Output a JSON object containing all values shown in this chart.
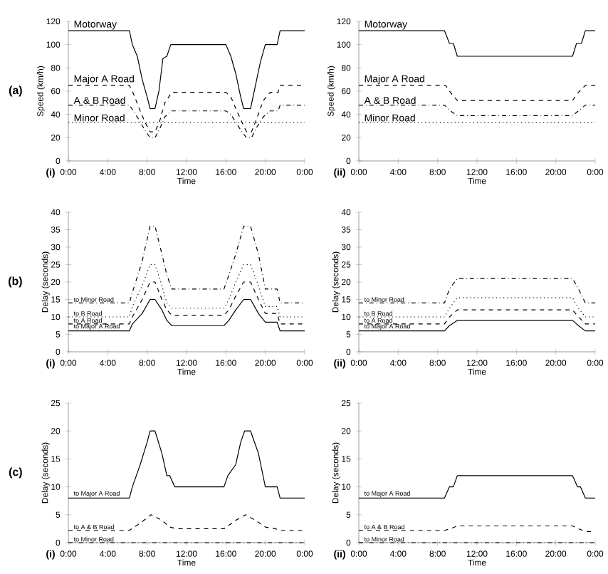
{
  "chart_data": [
    {
      "type": "line",
      "xlabel": "Time",
      "ylabel": "Speed (km/h)",
      "xlim": [
        0,
        24
      ],
      "ylim": [
        0,
        120
      ],
      "xticks": [
        {
          "value": 0,
          "label": "0:00"
        },
        {
          "value": 4,
          "label": "4:00"
        },
        {
          "value": 8,
          "label": "8:00"
        },
        {
          "value": 12,
          "label": "12:00"
        },
        {
          "value": 16,
          "label": "16:00"
        },
        {
          "value": 20,
          "label": "20:00"
        },
        {
          "value": 24,
          "label": "0:00"
        }
      ],
      "yticks": [
        0,
        20,
        40,
        60,
        80,
        100,
        120
      ],
      "annotations": [
        "(a)",
        "(i)"
      ],
      "series": [
        {
          "name": "Motorway",
          "color": "#000000",
          "line_style": "solid",
          "x": [
            0,
            6.2,
            6.5,
            7,
            7.5,
            8,
            8.3,
            8.8,
            9.2,
            9.6,
            10,
            10.4,
            16,
            16.5,
            17,
            17.5,
            17.8,
            18.5,
            19,
            19.5,
            20,
            21.2,
            21.5,
            24
          ],
          "values": [
            112,
            112,
            100,
            90,
            70,
            55,
            45,
            45,
            60,
            88,
            90,
            100,
            100,
            90,
            75,
            55,
            45,
            45,
            65,
            85,
            100,
            100,
            112,
            112
          ]
        },
        {
          "name": "Major A Road",
          "color": "#000000",
          "line_style": "dashed",
          "x": [
            0,
            6.2,
            6.6,
            7.2,
            7.8,
            8.3,
            8.8,
            9.3,
            9.8,
            10.5,
            16,
            16.5,
            17.1,
            17.7,
            18.1,
            18.6,
            19.2,
            19.8,
            20.5,
            21.3,
            21.5,
            24
          ],
          "values": [
            65,
            65,
            58,
            45,
            33,
            25,
            25,
            35,
            50,
            59,
            59,
            55,
            43,
            32,
            25,
            25,
            38,
            52,
            59,
            59,
            65,
            65
          ]
        },
        {
          "name": "A & B Road",
          "color": "#000000",
          "line_style": "dashdot",
          "x": [
            0,
            6.2,
            6.6,
            7.2,
            7.8,
            8.3,
            8.8,
            9.3,
            9.8,
            10.5,
            16,
            16.5,
            17.1,
            17.7,
            18.1,
            18.6,
            19.2,
            19.8,
            20.5,
            21.3,
            21.5,
            24
          ],
          "values": [
            48,
            48,
            43,
            35,
            26,
            20,
            20,
            28,
            38,
            43,
            43,
            40,
            32,
            24,
            20,
            20,
            30,
            38,
            43,
            43,
            48,
            48
          ]
        },
        {
          "name": "Minor Road",
          "color": "#000000",
          "line_style": "dotted",
          "x": [
            0,
            24
          ],
          "values": [
            33,
            33
          ]
        }
      ]
    },
    {
      "type": "line",
      "xlabel": "Time",
      "ylabel": "Speed (km/h)",
      "xlim": [
        0,
        24
      ],
      "ylim": [
        0,
        120
      ],
      "xticks": [
        {
          "value": 0,
          "label": "0:00"
        },
        {
          "value": 4,
          "label": "4:00"
        },
        {
          "value": 8,
          "label": "8:00"
        },
        {
          "value": 12,
          "label": "12:00"
        },
        {
          "value": 16,
          "label": "16:00"
        },
        {
          "value": 20,
          "label": "20:00"
        },
        {
          "value": 24,
          "label": "0:00"
        }
      ],
      "yticks": [
        0,
        20,
        40,
        60,
        80,
        100,
        120
      ],
      "annotations": [
        "(ii)"
      ],
      "series": [
        {
          "name": "Motorway",
          "color": "#000000",
          "line_style": "solid",
          "x": [
            0,
            8.7,
            9.2,
            9.6,
            10,
            21.7,
            22.1,
            22.6,
            23,
            24
          ],
          "values": [
            112,
            112,
            101,
            101,
            90,
            90,
            101,
            101,
            112,
            112
          ]
        },
        {
          "name": "Major A Road",
          "color": "#000000",
          "line_style": "dashed",
          "x": [
            0,
            8.8,
            9.3,
            10,
            21.7,
            22.3,
            23,
            24
          ],
          "values": [
            65,
            65,
            59,
            52,
            52,
            59,
            65,
            65
          ]
        },
        {
          "name": "A & B Road",
          "color": "#000000",
          "line_style": "dashdot",
          "x": [
            0,
            8.7,
            9.3,
            10,
            21.7,
            22.3,
            23,
            24
          ],
          "values": [
            48,
            48,
            43,
            39,
            39,
            43,
            48,
            48
          ]
        },
        {
          "name": "Minor Road",
          "color": "#000000",
          "line_style": "dotted",
          "x": [
            0,
            24
          ],
          "values": [
            33,
            33
          ]
        }
      ]
    },
    {
      "type": "line",
      "xlabel": "Time",
      "ylabel": "Delay (seconds)",
      "xlim": [
        0,
        24
      ],
      "ylim": [
        0,
        40
      ],
      "xticks": [
        {
          "value": 0,
          "label": "0:00"
        },
        {
          "value": 4,
          "label": "4:00"
        },
        {
          "value": 8,
          "label": "8:00"
        },
        {
          "value": 12,
          "label": "12:00"
        },
        {
          "value": 16,
          "label": "16:00"
        },
        {
          "value": 20,
          "label": "20:00"
        },
        {
          "value": 24,
          "label": "0:00"
        }
      ],
      "yticks": [
        0,
        5,
        10,
        15,
        20,
        25,
        30,
        35,
        40
      ],
      "annotations": [
        "(b)",
        "(i)"
      ],
      "series": [
        {
          "name": "to Minor Road",
          "color": "#000000",
          "line_style": "dashdot",
          "x": [
            0,
            6.2,
            6.5,
            7.5,
            8.3,
            8.8,
            9.5,
            10,
            10.5,
            15.8,
            16.3,
            17,
            17.8,
            18.5,
            19.3,
            20,
            21.2,
            21.5,
            24
          ],
          "values": [
            14,
            14,
            17,
            26,
            36,
            36,
            28,
            22,
            18,
            18,
            22,
            28,
            36,
            36,
            28,
            18,
            18,
            14,
            14
          ]
        },
        {
          "name": "to B Road",
          "color": "#000000",
          "line_style": "dotted",
          "x": [
            0,
            6.2,
            6.5,
            7.5,
            8.3,
            8.8,
            9.5,
            10,
            10.5,
            15.8,
            16.3,
            17,
            17.8,
            18.5,
            19.3,
            20,
            21.2,
            21.5,
            24
          ],
          "values": [
            10,
            10,
            13,
            19,
            25,
            25,
            19,
            14,
            12.5,
            12.5,
            15,
            20,
            25,
            25,
            19,
            13,
            13,
            10,
            10
          ]
        },
        {
          "name": "to A Road",
          "color": "#000000",
          "line_style": "dashed",
          "x": [
            0,
            6.2,
            6.5,
            7.5,
            8.3,
            8.8,
            9.5,
            10,
            10.5,
            15.8,
            16.3,
            17,
            17.8,
            18.5,
            19.3,
            20,
            21.2,
            21.5,
            24
          ],
          "values": [
            8,
            8,
            10,
            15,
            20,
            20,
            15,
            12,
            10.5,
            10.5,
            12,
            16,
            20,
            20,
            15,
            11,
            11,
            8,
            8
          ]
        },
        {
          "name": "to Major A Road",
          "color": "#000000",
          "line_style": "solid",
          "x": [
            0,
            6.2,
            6.5,
            7.5,
            8.3,
            8.8,
            9.5,
            10,
            10.5,
            15.8,
            16.3,
            17,
            17.8,
            18.5,
            19.3,
            20,
            21.2,
            21.5,
            24
          ],
          "values": [
            6,
            6,
            8,
            11,
            15,
            15,
            12,
            9,
            7.5,
            7.5,
            9,
            12,
            15,
            15,
            11,
            8.5,
            8.5,
            6,
            6
          ]
        }
      ]
    },
    {
      "type": "line",
      "xlabel": "Time",
      "ylabel": "Delay (seconds)",
      "xlim": [
        0,
        24
      ],
      "ylim": [
        0,
        40
      ],
      "xticks": [
        {
          "value": 0,
          "label": "0:00"
        },
        {
          "value": 4,
          "label": "4:00"
        },
        {
          "value": 8,
          "label": "8:00"
        },
        {
          "value": 12,
          "label": "12:00"
        },
        {
          "value": 16,
          "label": "16:00"
        },
        {
          "value": 20,
          "label": "20:00"
        },
        {
          "value": 24,
          "label": "0:00"
        }
      ],
      "yticks": [
        0,
        5,
        10,
        15,
        20,
        25,
        30,
        35,
        40
      ],
      "annotations": [
        "(ii)"
      ],
      "series": [
        {
          "name": "to Minor Road",
          "color": "#000000",
          "line_style": "dashdot",
          "x": [
            0,
            8.7,
            9.2,
            10,
            21.7,
            22.3,
            23,
            24
          ],
          "values": [
            14,
            14,
            18,
            21,
            21,
            18,
            14,
            14
          ]
        },
        {
          "name": "to B Road",
          "color": "#000000",
          "line_style": "dotted",
          "x": [
            0,
            8.7,
            9.2,
            10,
            21.7,
            22.3,
            23,
            24
          ],
          "values": [
            10,
            10,
            12.5,
            15.5,
            15.5,
            12.5,
            10,
            10
          ]
        },
        {
          "name": "to A Road",
          "color": "#000000",
          "line_style": "dashed",
          "x": [
            0,
            8.7,
            9.2,
            10,
            21.7,
            22.3,
            23,
            24
          ],
          "values": [
            8,
            8,
            10,
            12,
            12,
            10,
            8,
            8
          ]
        },
        {
          "name": "to Major A Road",
          "color": "#000000",
          "line_style": "solid",
          "x": [
            0,
            8.7,
            9.2,
            10,
            21.7,
            22.3,
            23,
            24
          ],
          "values": [
            6,
            6,
            7.5,
            9,
            9,
            7.5,
            6,
            6
          ]
        }
      ]
    },
    {
      "type": "line",
      "xlabel": "Time",
      "ylabel": "Delay (seconds)",
      "xlim": [
        0,
        24
      ],
      "ylim": [
        0,
        25
      ],
      "xticks": [
        {
          "value": 0,
          "label": "0:00"
        },
        {
          "value": 4,
          "label": "4:00"
        },
        {
          "value": 8,
          "label": "8:00"
        },
        {
          "value": 12,
          "label": "12:00"
        },
        {
          "value": 16,
          "label": "16:00"
        },
        {
          "value": 20,
          "label": "20:00"
        },
        {
          "value": 24,
          "label": "0:00"
        }
      ],
      "yticks": [
        0,
        5,
        10,
        15,
        20,
        25
      ],
      "annotations": [
        "(c)",
        "(i)"
      ],
      "series": [
        {
          "name": "to Major A Road",
          "color": "#000000",
          "line_style": "solid",
          "x": [
            0,
            6.2,
            6.5,
            7.3,
            8,
            8.3,
            8.8,
            9.5,
            10,
            10.3,
            10.8,
            15.8,
            16.2,
            17,
            17.5,
            17.9,
            18.5,
            19.3,
            20,
            21.2,
            21.5,
            24
          ],
          "values": [
            8,
            8,
            10,
            14,
            18,
            20,
            20,
            16,
            12,
            12,
            10,
            10,
            12,
            14,
            18,
            20,
            20,
            16,
            10,
            10,
            8,
            8
          ]
        },
        {
          "name": "to A & B Road",
          "color": "#000000",
          "line_style": "dashed",
          "x": [
            0,
            6.2,
            7.3,
            8.4,
            9.5,
            10.3,
            11,
            15.8,
            17,
            18,
            19,
            20,
            21,
            21.5,
            24
          ],
          "values": [
            2.2,
            2.2,
            3.5,
            5,
            4,
            2.8,
            2.5,
            2.5,
            4,
            5,
            4,
            2.8,
            2.5,
            2.2,
            2.2
          ]
        },
        {
          "name": "to Minor Road",
          "color": "#000000",
          "line_style": "dashdot",
          "x": [
            0,
            24
          ],
          "values": [
            0,
            0
          ]
        }
      ]
    },
    {
      "type": "line",
      "xlabel": "Time",
      "ylabel": "Delay (seconds)",
      "xlim": [
        0,
        24
      ],
      "ylim": [
        0,
        25
      ],
      "xticks": [
        {
          "value": 0,
          "label": "0:00"
        },
        {
          "value": 4,
          "label": "4:00"
        },
        {
          "value": 8,
          "label": "8:00"
        },
        {
          "value": 12,
          "label": "12:00"
        },
        {
          "value": 16,
          "label": "16:00"
        },
        {
          "value": 20,
          "label": "20:00"
        },
        {
          "value": 24,
          "label": "0:00"
        }
      ],
      "yticks": [
        0,
        5,
        10,
        15,
        20,
        25
      ],
      "annotations": [
        "(ii)"
      ],
      "series": [
        {
          "name": "to Major A Road",
          "color": "#000000",
          "line_style": "solid",
          "x": [
            0,
            8.7,
            9.2,
            9.6,
            10,
            21.7,
            22.2,
            22.5,
            23,
            24
          ],
          "values": [
            8,
            8,
            10,
            10,
            12,
            12,
            10,
            10,
            8,
            8
          ]
        },
        {
          "name": "to A & B Road",
          "color": "#000000",
          "line_style": "dashed",
          "x": [
            0,
            8.7,
            9.3,
            10,
            21.7,
            22.3,
            23,
            24
          ],
          "values": [
            2.2,
            2.2,
            2.5,
            3,
            3,
            2.5,
            2,
            2
          ]
        },
        {
          "name": "to Minor Road",
          "color": "#000000",
          "line_style": "dashdot",
          "x": [
            0,
            24
          ],
          "values": [
            0,
            0
          ]
        }
      ]
    }
  ]
}
